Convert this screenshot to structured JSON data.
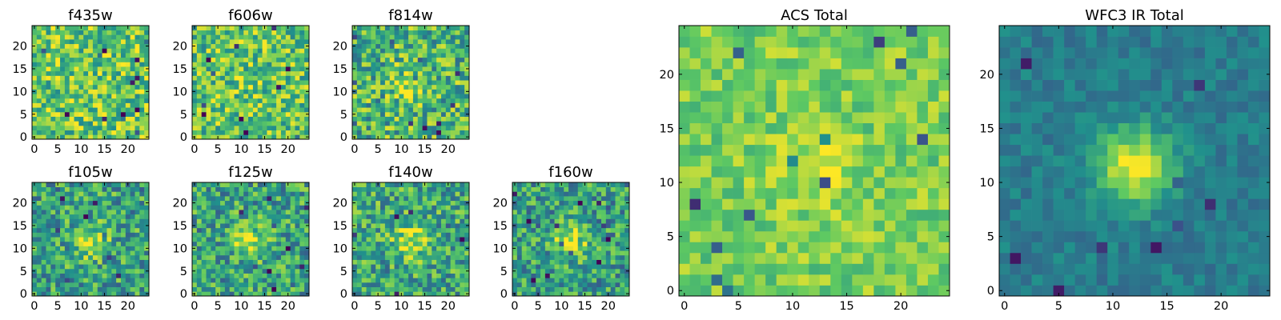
{
  "chart_data": [
    {
      "type": "heatmap",
      "title": "f435w",
      "grid_size": 25,
      "xlim": [
        0,
        24
      ],
      "ylim": [
        0,
        24
      ],
      "xticks": [
        "0",
        "5",
        "10",
        "15",
        "20"
      ],
      "yticks": [
        "0",
        "5",
        "10",
        "15",
        "20"
      ],
      "grid": false,
      "colormap": "viridis",
      "central_source": 0.0,
      "noise": 0.55,
      "base": 0.74
    },
    {
      "type": "heatmap",
      "title": "f606w",
      "grid_size": 25,
      "xlim": [
        0,
        24
      ],
      "ylim": [
        0,
        24
      ],
      "xticks": [
        "0",
        "5",
        "10",
        "15",
        "20"
      ],
      "yticks": [
        "0",
        "5",
        "10",
        "15",
        "20"
      ],
      "grid": false,
      "colormap": "viridis",
      "central_source": 0.05,
      "noise": 0.55,
      "base": 0.72
    },
    {
      "type": "heatmap",
      "title": "f814w",
      "grid_size": 25,
      "xlim": [
        0,
        24
      ],
      "ylim": [
        0,
        24
      ],
      "xticks": [
        "0",
        "5",
        "10",
        "15",
        "20"
      ],
      "yticks": [
        "0",
        "5",
        "10",
        "15",
        "20"
      ],
      "grid": false,
      "colormap": "viridis",
      "central_source": 0.25,
      "noise": 0.6,
      "base": 0.66
    },
    {
      "type": "heatmap",
      "title": "f105w",
      "grid_size": 25,
      "xlim": [
        0,
        24
      ],
      "ylim": [
        0,
        24
      ],
      "xticks": [
        "0",
        "5",
        "10",
        "15",
        "20"
      ],
      "yticks": [
        "0",
        "5",
        "10",
        "15",
        "20"
      ],
      "grid": false,
      "colormap": "viridis",
      "central_source": 0.35,
      "noise": 0.55,
      "base": 0.58
    },
    {
      "type": "heatmap",
      "title": "f125w",
      "grid_size": 25,
      "xlim": [
        0,
        24
      ],
      "ylim": [
        0,
        24
      ],
      "xticks": [
        "0",
        "5",
        "10",
        "15",
        "20"
      ],
      "yticks": [
        "0",
        "5",
        "10",
        "15",
        "20"
      ],
      "grid": false,
      "colormap": "viridis",
      "central_source": 0.35,
      "noise": 0.55,
      "base": 0.58
    },
    {
      "type": "heatmap",
      "title": "f140w",
      "grid_size": 25,
      "xlim": [
        0,
        24
      ],
      "ylim": [
        0,
        24
      ],
      "xticks": [
        "0",
        "5",
        "10",
        "15",
        "20"
      ],
      "yticks": [
        "0",
        "5",
        "10",
        "15",
        "20"
      ],
      "grid": false,
      "colormap": "viridis",
      "central_source": 0.35,
      "noise": 0.55,
      "base": 0.6
    },
    {
      "type": "heatmap",
      "title": "f160w",
      "grid_size": 25,
      "xlim": [
        0,
        24
      ],
      "ylim": [
        0,
        24
      ],
      "xticks": [
        "0",
        "5",
        "10",
        "15",
        "20"
      ],
      "yticks": [
        "0",
        "5",
        "10",
        "15",
        "20"
      ],
      "grid": false,
      "colormap": "viridis",
      "central_source": 0.35,
      "noise": 0.55,
      "base": 0.56
    },
    {
      "type": "heatmap",
      "title": "ACS Total",
      "grid_size": 25,
      "xlim": [
        0,
        24
      ],
      "ylim": [
        0,
        24
      ],
      "xticks": [
        "0",
        "5",
        "10",
        "15",
        "20"
      ],
      "yticks": [
        "0",
        "5",
        "10",
        "15",
        "20"
      ],
      "grid": false,
      "colormap": "viridis",
      "central_source": 0.15,
      "noise": 0.3,
      "base": 0.78
    },
    {
      "type": "heatmap",
      "title": "WFC3 IR Total",
      "grid_size": 25,
      "xlim": [
        0,
        24
      ],
      "ylim": [
        0,
        24
      ],
      "xticks": [
        "0",
        "5",
        "10",
        "15",
        "20"
      ],
      "yticks": [
        "0",
        "5",
        "10",
        "15",
        "20"
      ],
      "grid": false,
      "colormap": "viridis",
      "central_source": 0.55,
      "noise": 0.18,
      "base": 0.42
    }
  ]
}
